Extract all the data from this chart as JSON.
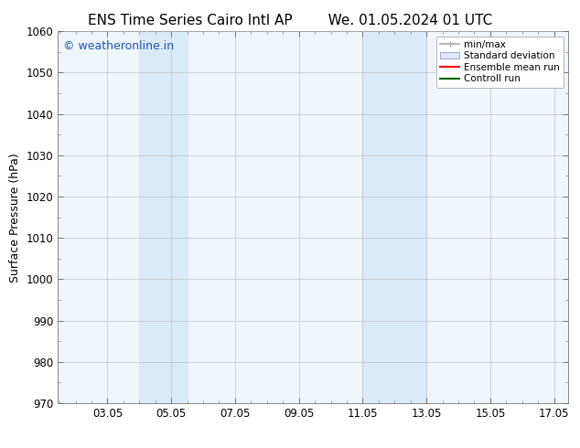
{
  "title_left": "ENS Time Series Cairo Intl AP",
  "title_right": "We. 01.05.2024 01 UTC",
  "ylabel": "Surface Pressure (hPa)",
  "xlim": [
    1.5,
    17.5
  ],
  "ylim": [
    970,
    1060
  ],
  "yticks": [
    970,
    980,
    990,
    1000,
    1010,
    1020,
    1030,
    1040,
    1050,
    1060
  ],
  "xtick_labels": [
    "03.05",
    "05.05",
    "07.05",
    "09.05",
    "11.05",
    "13.05",
    "15.05",
    "17.05"
  ],
  "xtick_positions": [
    3.05,
    5.05,
    7.05,
    9.05,
    11.05,
    13.05,
    15.05,
    17.05
  ],
  "shaded_bands": [
    {
      "x_start": 4.05,
      "x_end": 5.55
    },
    {
      "x_start": 11.05,
      "x_end": 13.05
    }
  ],
  "shaded_color": "#daeaf7",
  "background_color": "#ffffff",
  "plot_bg_color": "#eef5fb",
  "watermark_text": "© weatheronline.in",
  "watermark_color": "#2255bb",
  "watermark_fontsize": 9,
  "legend_entries": [
    {
      "label": "min/max"
    },
    {
      "label": "Standard deviation"
    },
    {
      "label": "Ensemble mean run"
    },
    {
      "label": "Controll run"
    }
  ],
  "title_fontsize": 11,
  "axis_fontsize": 9,
  "tick_fontsize": 8.5,
  "grid_color": "#bbbbbb",
  "grid_linestyle": "-",
  "grid_linewidth": 0.4,
  "minor_tick_color": "#888888"
}
